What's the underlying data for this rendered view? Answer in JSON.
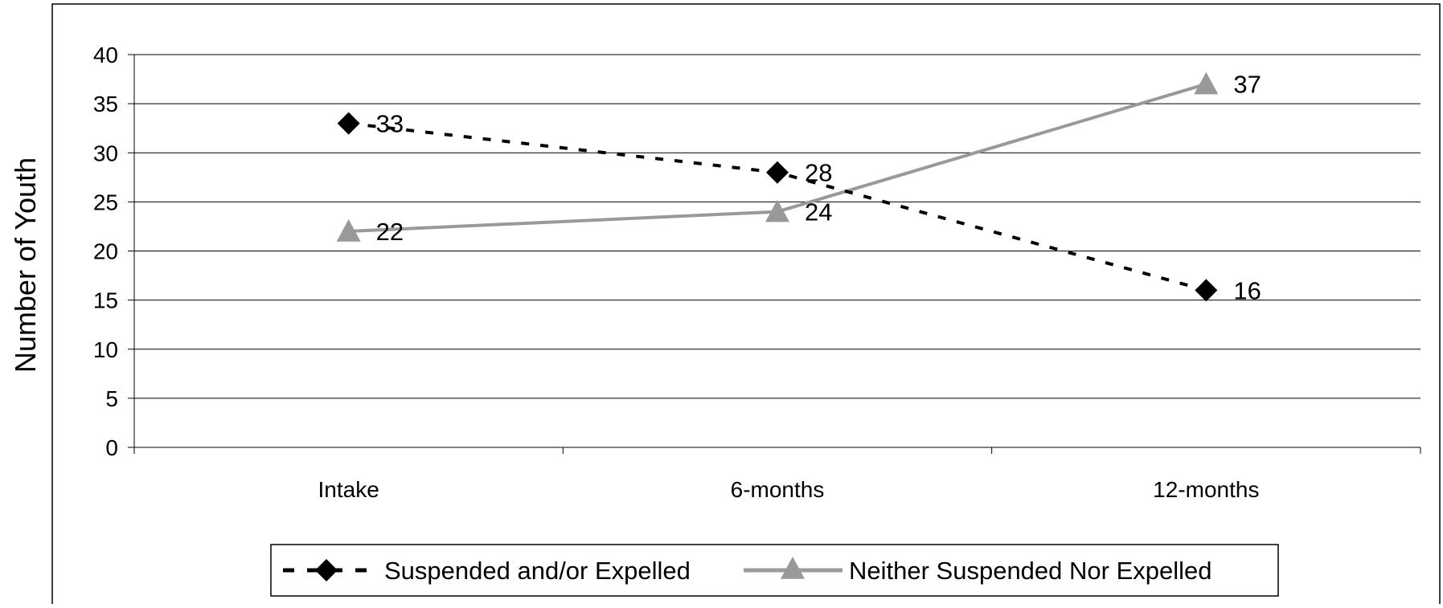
{
  "chart_data": {
    "type": "line",
    "title": "",
    "xlabel": "",
    "ylabel": "Number of Youth",
    "categories": [
      "Intake",
      "6-months",
      "12-months"
    ],
    "ylim": [
      0,
      40
    ],
    "yticks": [
      0,
      5,
      10,
      15,
      20,
      25,
      30,
      35,
      40
    ],
    "grid": true,
    "legend_position": "bottom",
    "series": [
      {
        "name": "Suspended and/or Expelled",
        "values": [
          33,
          28,
          16
        ],
        "color": "#000000",
        "line_style": "dashed",
        "marker": "diamond"
      },
      {
        "name": "Neither Suspended Nor Expelled",
        "values": [
          22,
          24,
          37
        ],
        "color": "#999999",
        "line_style": "solid",
        "marker": "triangle"
      }
    ]
  }
}
